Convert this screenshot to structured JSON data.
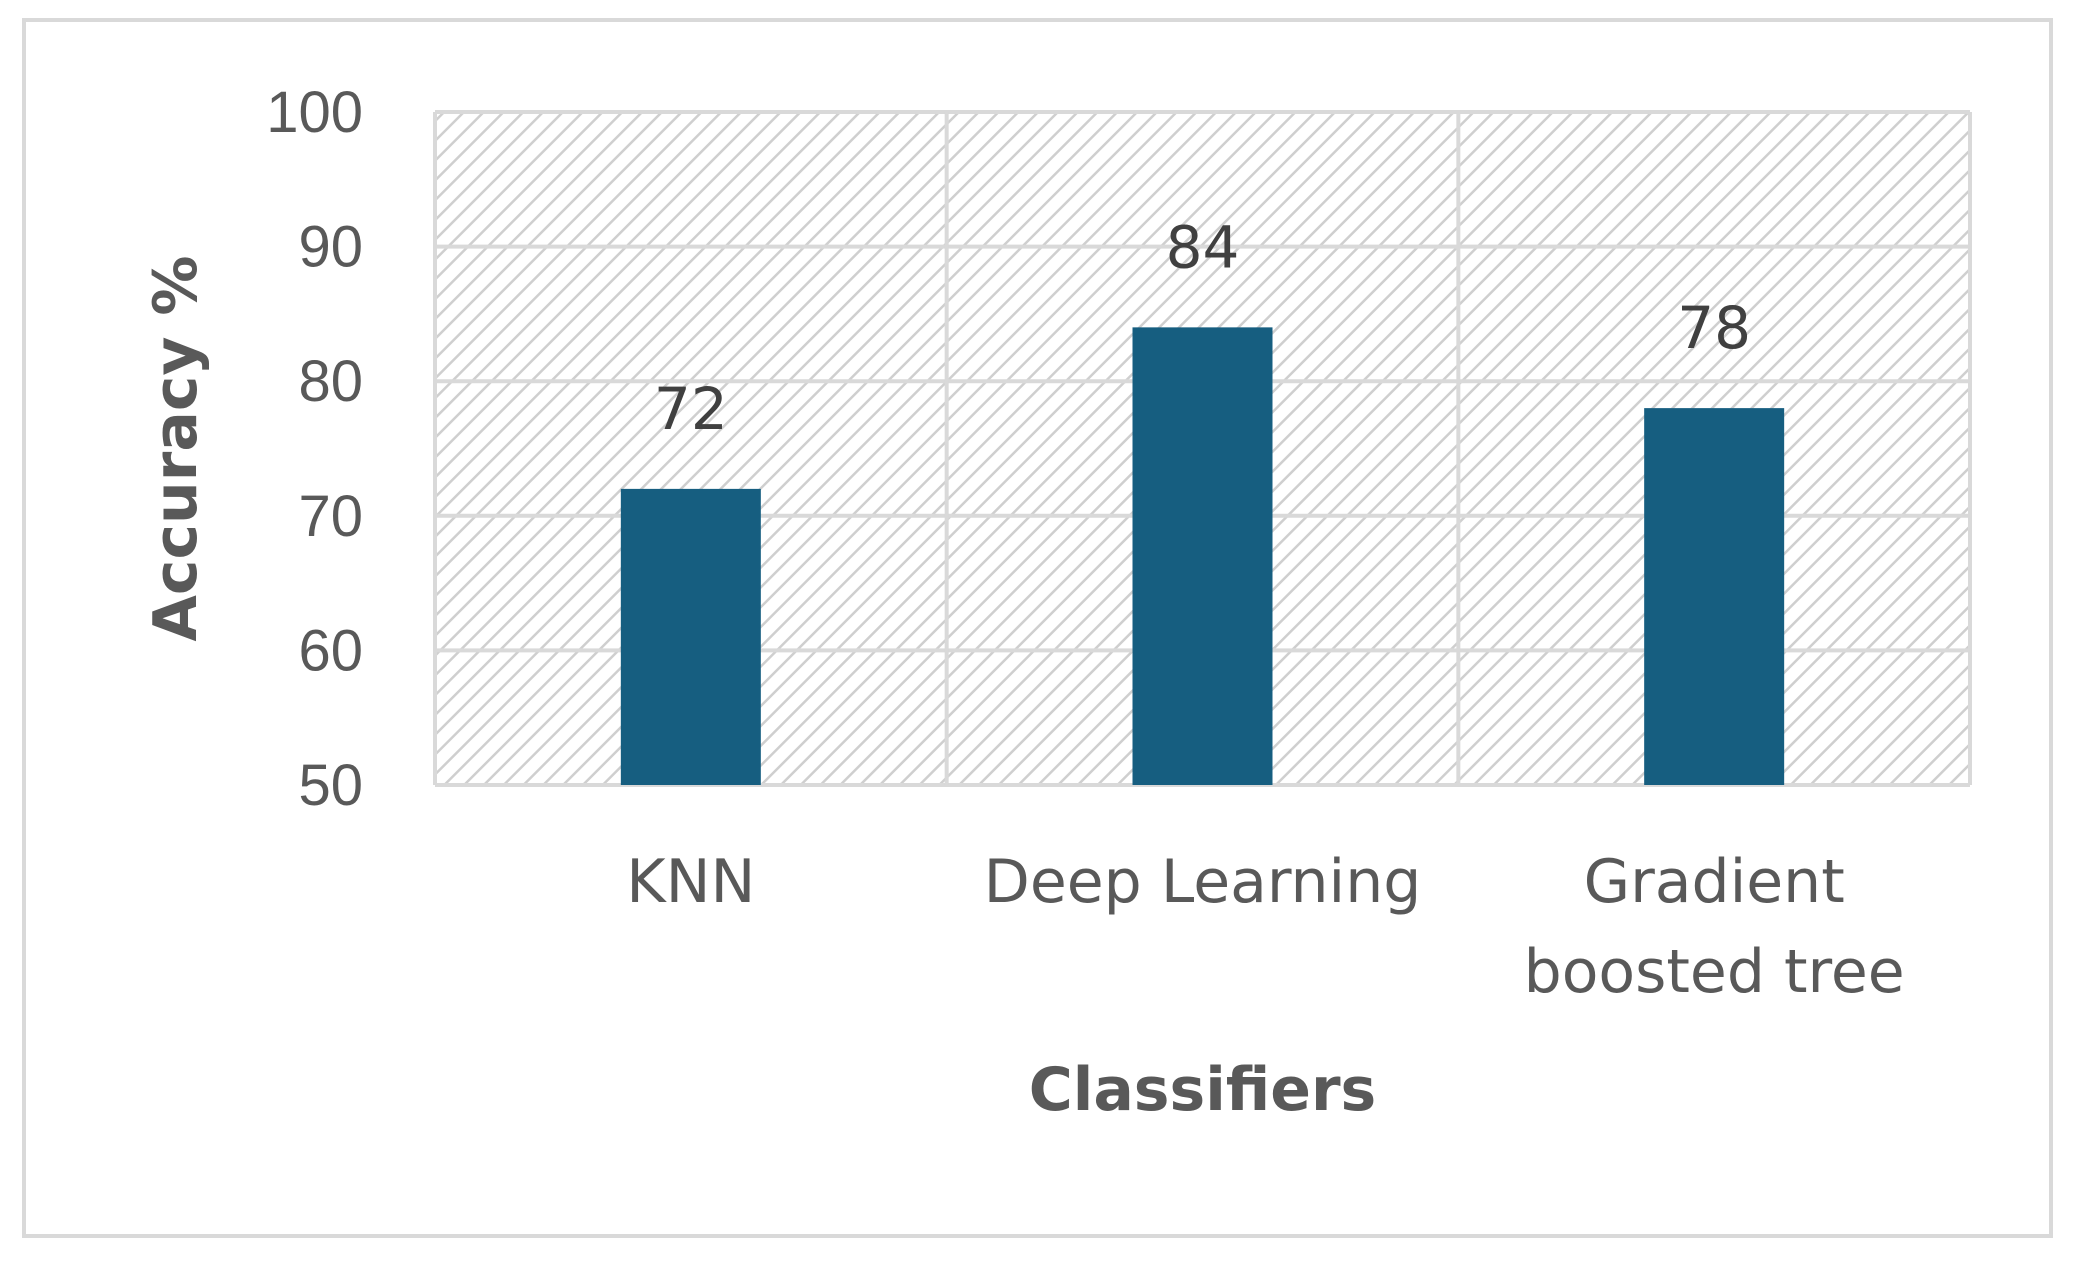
{
  "chart_data": {
    "type": "bar",
    "categories": [
      "KNN",
      "Deep Learning",
      "Gradient boosted tree"
    ],
    "category_lines": [
      [
        "KNN"
      ],
      [
        "Deep Learning"
      ],
      [
        "Gradient",
        "boosted tree"
      ]
    ],
    "values": [
      72,
      84,
      78
    ],
    "data_labels": [
      "72",
      "84",
      "78"
    ],
    "title": "",
    "xlabel": "Classifiers",
    "ylabel": "Accuracy %",
    "ylim": [
      50,
      100
    ],
    "yticks": [
      50,
      60,
      70,
      80,
      90,
      100
    ],
    "grid": true,
    "plot_background": "hatched",
    "legend": "none",
    "colors": {
      "bar": "#165e80",
      "grid": "#d9d9d9",
      "hatch": "#cfcfcf",
      "text": "#595959"
    }
  }
}
